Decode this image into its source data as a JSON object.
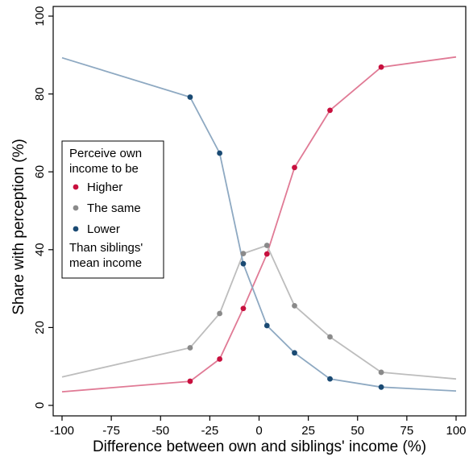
{
  "chart_data": {
    "type": "line",
    "xlabel": "Difference between own and siblings' income (%)",
    "ylabel": "Share with perception (%)",
    "xlim": [
      -100,
      100
    ],
    "ylim": [
      0,
      100
    ],
    "xticks": [
      -100,
      -75,
      -50,
      -25,
      0,
      25,
      50,
      75,
      100
    ],
    "yticks": [
      0,
      20,
      40,
      60,
      80,
      100
    ],
    "grid": false,
    "legend": {
      "placement": "left",
      "title_lines": [
        "Perceive own",
        "income to be"
      ],
      "footer_lines": [
        "Than siblings'",
        "mean income"
      ]
    },
    "series": [
      {
        "name": "Higher",
        "color": "#c8103e",
        "line_color": "#e07a95",
        "points": [
          {
            "x": -100,
            "y": 3.5,
            "marker": false
          },
          {
            "x": -35,
            "y": 6.2,
            "marker": true
          },
          {
            "x": -20,
            "y": 11.9,
            "marker": true
          },
          {
            "x": -8,
            "y": 24.9,
            "marker": true
          },
          {
            "x": 4,
            "y": 38.9,
            "marker": true
          },
          {
            "x": 18,
            "y": 61.1,
            "marker": true
          },
          {
            "x": 36,
            "y": 75.8,
            "marker": true
          },
          {
            "x": 62,
            "y": 86.9,
            "marker": true
          },
          {
            "x": 100,
            "y": 89.5,
            "marker": false
          }
        ]
      },
      {
        "name": "The same",
        "color": "#8a8a8a",
        "line_color": "#bdbdbd",
        "points": [
          {
            "x": -100,
            "y": 7.3,
            "marker": false
          },
          {
            "x": -35,
            "y": 14.8,
            "marker": true
          },
          {
            "x": -20,
            "y": 23.6,
            "marker": true
          },
          {
            "x": -8,
            "y": 39.0,
            "marker": true
          },
          {
            "x": 4,
            "y": 41.1,
            "marker": true
          },
          {
            "x": 18,
            "y": 25.6,
            "marker": true
          },
          {
            "x": 36,
            "y": 17.6,
            "marker": true
          },
          {
            "x": 62,
            "y": 8.5,
            "marker": true
          },
          {
            "x": 100,
            "y": 6.8,
            "marker": false
          }
        ]
      },
      {
        "name": "Lower",
        "color": "#1a4a73",
        "line_color": "#8ea9c2",
        "points": [
          {
            "x": -100,
            "y": 89.3,
            "marker": false
          },
          {
            "x": -35,
            "y": 79.2,
            "marker": true
          },
          {
            "x": -20,
            "y": 64.8,
            "marker": true
          },
          {
            "x": -8,
            "y": 36.4,
            "marker": true
          },
          {
            "x": 4,
            "y": 20.5,
            "marker": true
          },
          {
            "x": 18,
            "y": 13.5,
            "marker": true
          },
          {
            "x": 36,
            "y": 6.8,
            "marker": true
          },
          {
            "x": 62,
            "y": 4.7,
            "marker": true
          },
          {
            "x": 100,
            "y": 3.7,
            "marker": false
          }
        ]
      }
    ]
  }
}
